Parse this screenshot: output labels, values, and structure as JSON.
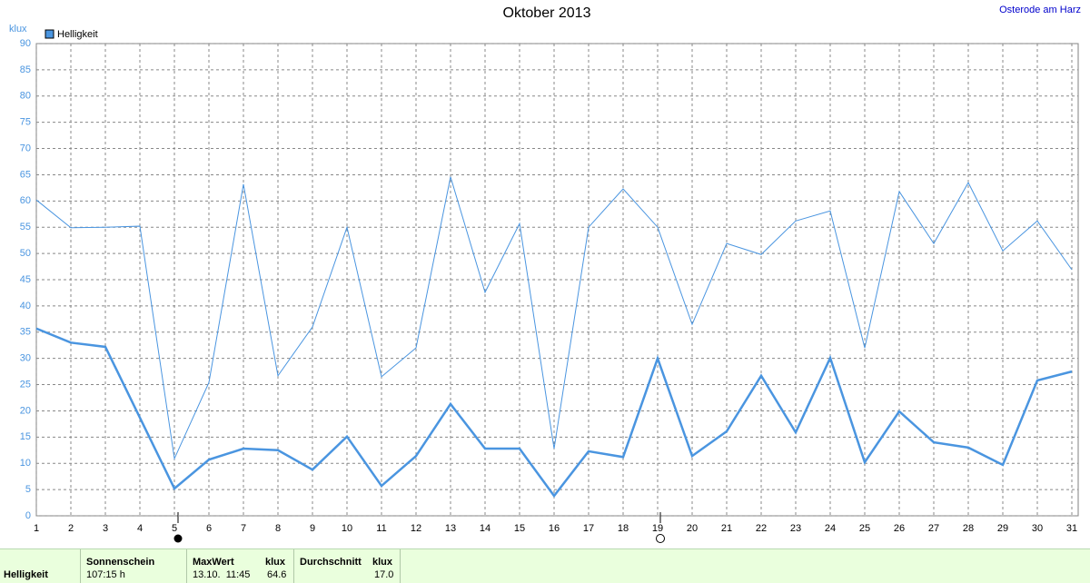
{
  "chart_data": {
    "type": "line",
    "title": "Oktober 2013",
    "location": "Osterode am Harz",
    "y_label": "klux",
    "x": [
      1,
      2,
      3,
      4,
      5,
      6,
      7,
      8,
      9,
      10,
      11,
      12,
      13,
      14,
      15,
      16,
      17,
      18,
      19,
      20,
      21,
      22,
      23,
      24,
      25,
      26,
      27,
      28,
      29,
      30,
      31
    ],
    "xlim": [
      1,
      31
    ],
    "xticks": [
      1,
      2,
      3,
      4,
      5,
      6,
      7,
      8,
      9,
      10,
      11,
      12,
      13,
      14,
      15,
      16,
      17,
      18,
      19,
      20,
      21,
      22,
      23,
      24,
      25,
      26,
      27,
      28,
      29,
      30,
      31
    ],
    "ylim": [
      0,
      90
    ],
    "yticks": [
      0,
      5,
      10,
      15,
      20,
      25,
      30,
      35,
      40,
      45,
      50,
      55,
      60,
      65,
      70,
      75,
      80,
      85,
      90
    ],
    "grid": true,
    "legend": "top-left",
    "series": [
      {
        "name": "Helligkeit",
        "color": "#4a95e0",
        "values": [
          60.2,
          54.9,
          55,
          55.2,
          10.9,
          25.4,
          63.2,
          26.7,
          36,
          55,
          26.5,
          32,
          64.6,
          42.6,
          55.7,
          12.8,
          55,
          62.3,
          55,
          36.5,
          51.9,
          49.8,
          56.2,
          58.1,
          32,
          61.8,
          51.9,
          63.5,
          50.5,
          56.2,
          46.9
        ]
      },
      {
        "color": "#4a95e0",
        "values": [
          35.7,
          33,
          32.2,
          18.7,
          5.2,
          10.7,
          12.8,
          12.5,
          8.8,
          15.1,
          5.7,
          11.4,
          21.3,
          12.8,
          12.8,
          3.8,
          12.3,
          11.2,
          30,
          11.4,
          16.1,
          26.7,
          15.9,
          30.1,
          10.2,
          19.9,
          14,
          13,
          9.7,
          25.8,
          27.5
        ]
      }
    ]
  },
  "footer": {
    "label": "Helligkeit",
    "columns": [
      {
        "header": "Sonnenschein",
        "value": "107:15 h"
      },
      {
        "header": "MaxWert",
        "unit": "klux",
        "time": "13.10.  11:45",
        "value": "64.6"
      },
      {
        "header": "Durchschnitt",
        "unit": "klux",
        "value": "17.0"
      }
    ]
  }
}
